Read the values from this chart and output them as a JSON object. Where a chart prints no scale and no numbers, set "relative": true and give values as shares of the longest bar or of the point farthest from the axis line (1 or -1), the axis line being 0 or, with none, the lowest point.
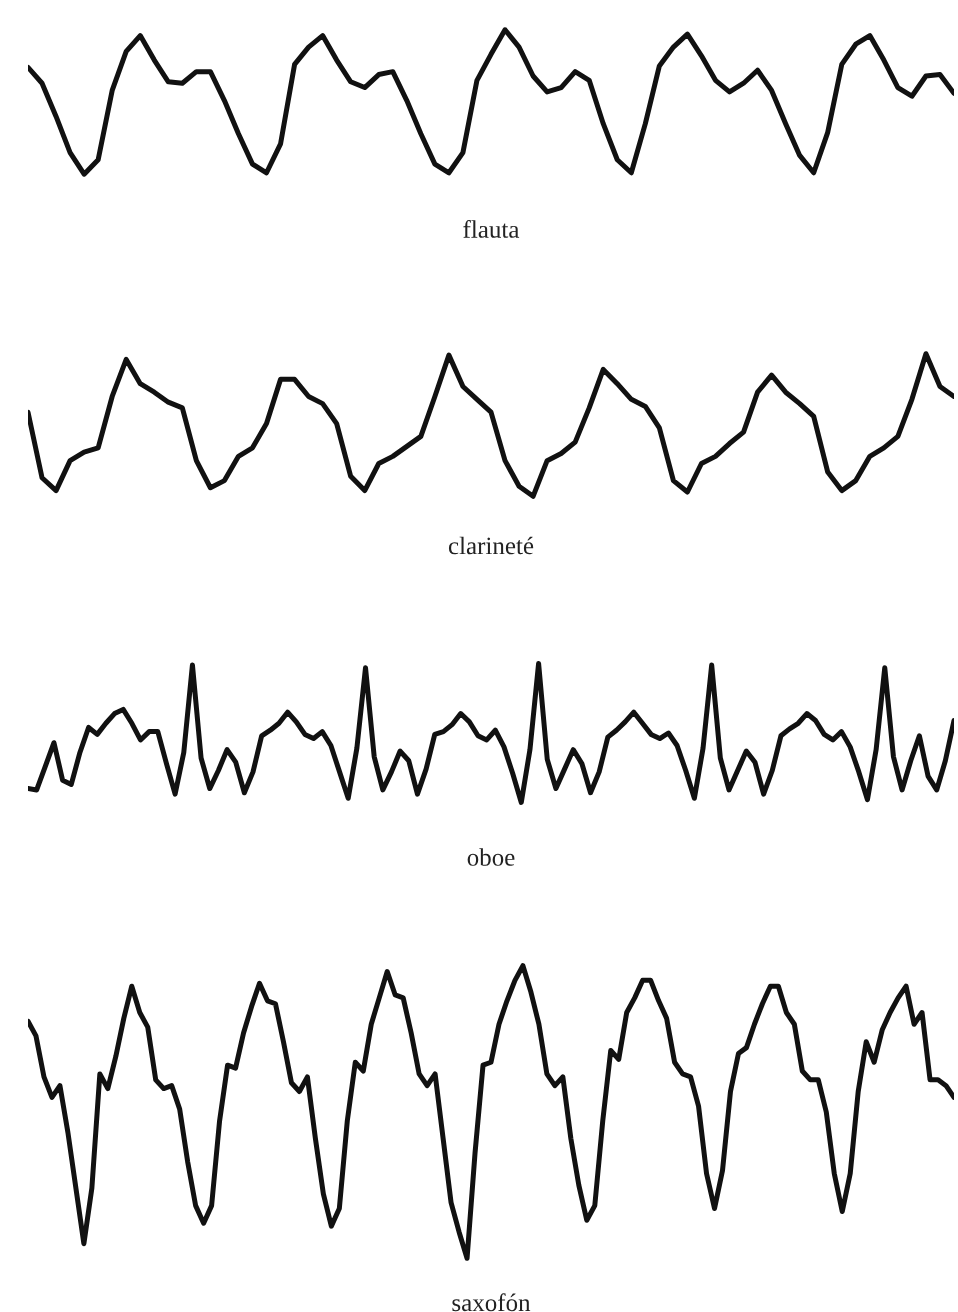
{
  "chart_data": [
    {
      "type": "line",
      "xlabel": "flauta",
      "relative": true,
      "categories": [
        null,
        null,
        null,
        null,
        null,
        null,
        null,
        null,
        null,
        null,
        null,
        null,
        null,
        null,
        null,
        null,
        null,
        null,
        null,
        null,
        null,
        null,
        null,
        null,
        null,
        null,
        null,
        null,
        null,
        null,
        null,
        null,
        null,
        null,
        null,
        null,
        null,
        null,
        null,
        null,
        null,
        null,
        null,
        null,
        null,
        null,
        null,
        null,
        null,
        null,
        null,
        null,
        null,
        null,
        null,
        null,
        null,
        null,
        null,
        null,
        null,
        null,
        null,
        null,
        null,
        null,
        null
      ],
      "series": [
        {
          "color": "#111111",
          "values": [
            0.74,
            0.63,
            0.4,
            0.15,
            0,
            0.1,
            0.58,
            0.85,
            0.96,
            0.79,
            0.64,
            0.63,
            0.71,
            0.71,
            0.51,
            0.28,
            0.07,
            0.01,
            0.21,
            0.76,
            0.88,
            0.96,
            0.79,
            0.64,
            0.6,
            0.69,
            0.71,
            0.51,
            0.28,
            0.07,
            0.01,
            0.15,
            0.65,
            0.83,
            1,
            0.88,
            0.68,
            0.57,
            0.6,
            0.71,
            0.65,
            0.35,
            0.1,
            0.01,
            0.35,
            0.75,
            0.88,
            0.97,
            0.82,
            0.65,
            0.57,
            0.63,
            0.72,
            0.58,
            0.35,
            0.13,
            0.01,
            0.29,
            0.76,
            0.9,
            0.96,
            0.79,
            0.6,
            0.54,
            0.68,
            0.69,
            0.56
          ]
        }
      ]
    },
    {
      "type": "line",
      "xlabel": "clarineté",
      "relative": true,
      "categories": [
        null,
        null,
        null,
        null,
        null,
        null,
        null,
        null,
        null,
        null,
        null,
        null,
        null,
        null,
        null,
        null,
        null,
        null,
        null,
        null,
        null,
        null,
        null,
        null,
        null,
        null,
        null,
        null,
        null,
        null,
        null,
        null,
        null,
        null,
        null,
        null,
        null,
        null,
        null,
        null,
        null,
        null,
        null,
        null,
        null,
        null,
        null,
        null,
        null,
        null,
        null,
        null,
        null,
        null,
        null,
        null,
        null,
        null,
        null,
        null,
        null,
        null,
        null,
        null,
        null,
        null,
        null
      ],
      "series": [
        {
          "color": "#111111",
          "values": [
            0.59,
            0.13,
            0.04,
            0.25,
            0.31,
            0.34,
            0.7,
            0.96,
            0.79,
            0.73,
            0.66,
            0.62,
            0.25,
            0.06,
            0.11,
            0.28,
            0.34,
            0.51,
            0.82,
            0.82,
            0.7,
            0.65,
            0.51,
            0.14,
            0.04,
            0.23,
            0.28,
            0.35,
            0.42,
            0.7,
            0.99,
            0.77,
            0.68,
            0.59,
            0.25,
            0.07,
            0,
            0.25,
            0.3,
            0.38,
            0.62,
            0.89,
            0.79,
            0.68,
            0.63,
            0.48,
            0.11,
            0.03,
            0.23,
            0.28,
            0.37,
            0.45,
            0.73,
            0.85,
            0.73,
            0.65,
            0.56,
            0.17,
            0.04,
            0.11,
            0.28,
            0.34,
            0.42,
            0.68,
            1,
            0.77,
            0.7
          ]
        }
      ]
    },
    {
      "type": "line",
      "xlabel": "oboe",
      "relative": true,
      "categories": [
        null,
        null,
        null,
        null,
        null,
        null,
        null,
        null,
        null,
        null,
        null,
        null,
        null,
        null,
        null,
        null,
        null,
        null,
        null,
        null,
        null,
        null,
        null,
        null,
        null,
        null,
        null,
        null,
        null,
        null,
        null,
        null,
        null,
        null,
        null,
        null,
        null,
        null,
        null,
        null,
        null,
        null,
        null,
        null,
        null,
        null,
        null,
        null,
        null,
        null,
        null,
        null,
        null,
        null,
        null,
        null,
        null,
        null,
        null,
        null,
        null,
        null,
        null,
        null,
        null,
        null,
        null,
        null,
        null,
        null,
        null,
        null,
        null,
        null,
        null,
        null,
        null,
        null,
        null,
        null,
        null,
        null,
        null,
        null,
        null,
        null,
        null,
        null,
        null,
        null,
        null,
        null,
        null,
        null,
        null,
        null,
        null,
        null,
        null,
        null,
        null,
        null,
        null,
        null,
        null,
        null,
        null,
        null
      ],
      "series": [
        {
          "color": "#111111",
          "values": [
            0.1,
            0.09,
            0.26,
            0.43,
            0.16,
            0.13,
            0.36,
            0.54,
            0.49,
            0.57,
            0.64,
            0.67,
            0.57,
            0.45,
            0.51,
            0.51,
            0.28,
            0.06,
            0.36,
            0.99,
            0.32,
            0.1,
            0.23,
            0.38,
            0.29,
            0.07,
            0.22,
            0.48,
            0.52,
            0.57,
            0.65,
            0.58,
            0.49,
            0.46,
            0.51,
            0.41,
            0.22,
            0.03,
            0.39,
            0.97,
            0.33,
            0.09,
            0.22,
            0.37,
            0.3,
            0.06,
            0.24,
            0.49,
            0.51,
            0.56,
            0.64,
            0.58,
            0.48,
            0.45,
            0.52,
            0.4,
            0.21,
            0,
            0.38,
            1,
            0.31,
            0.1,
            0.24,
            0.38,
            0.28,
            0.07,
            0.22,
            0.47,
            0.52,
            0.58,
            0.65,
            0.57,
            0.49,
            0.46,
            0.5,
            0.41,
            0.23,
            0.03,
            0.39,
            0.99,
            0.32,
            0.09,
            0.23,
            0.37,
            0.29,
            0.06,
            0.23,
            0.48,
            0.53,
            0.57,
            0.64,
            0.59,
            0.49,
            0.45,
            0.51,
            0.4,
            0.22,
            0.02,
            0.38,
            0.97,
            0.33,
            0.09,
            0.3,
            0.48,
            0.19,
            0.09,
            0.3,
            0.59
          ]
        }
      ]
    },
    {
      "type": "line",
      "xlabel": "saxofón",
      "relative": true,
      "categories": [
        null,
        null,
        null,
        null,
        null,
        null,
        null,
        null,
        null,
        null,
        null,
        null,
        null,
        null,
        null,
        null,
        null,
        null,
        null,
        null,
        null,
        null,
        null,
        null,
        null,
        null,
        null,
        null,
        null,
        null,
        null,
        null,
        null,
        null,
        null,
        null,
        null,
        null,
        null,
        null,
        null,
        null,
        null,
        null,
        null,
        null,
        null,
        null,
        null,
        null,
        null,
        null,
        null,
        null,
        null,
        null,
        null,
        null,
        null,
        null,
        null,
        null,
        null,
        null,
        null,
        null,
        null,
        null,
        null,
        null,
        null,
        null,
        null,
        null,
        null,
        null,
        null,
        null,
        null,
        null,
        null,
        null,
        null,
        null,
        null,
        null,
        null,
        null,
        null,
        null,
        null,
        null,
        null,
        null,
        null,
        null,
        null,
        null,
        null,
        null,
        null,
        null,
        null,
        null,
        null,
        null,
        null,
        null,
        null,
        null,
        null,
        null,
        null,
        null,
        null,
        null,
        null
      ],
      "series": [
        {
          "color": "#111111",
          "values": [
            0.81,
            0.76,
            0.62,
            0.55,
            0.59,
            0.43,
            0.24,
            0.05,
            0.24,
            0.63,
            0.58,
            0.69,
            0.82,
            0.93,
            0.84,
            0.79,
            0.61,
            0.58,
            0.59,
            0.51,
            0.33,
            0.18,
            0.12,
            0.18,
            0.47,
            0.66,
            0.65,
            0.77,
            0.86,
            0.94,
            0.88,
            0.87,
            0.74,
            0.6,
            0.57,
            0.62,
            0.41,
            0.22,
            0.11,
            0.17,
            0.47,
            0.67,
            0.64,
            0.8,
            0.89,
            0.98,
            0.9,
            0.89,
            0.77,
            0.63,
            0.59,
            0.63,
            0.41,
            0.19,
            0.09,
            0,
            0.36,
            0.66,
            0.67,
            0.8,
            0.88,
            0.95,
            1,
            0.91,
            0.8,
            0.63,
            0.59,
            0.62,
            0.41,
            0.25,
            0.13,
            0.18,
            0.47,
            0.71,
            0.68,
            0.84,
            0.89,
            0.95,
            0.95,
            0.88,
            0.82,
            0.67,
            0.63,
            0.62,
            0.52,
            0.29,
            0.17,
            0.3,
            0.57,
            0.7,
            0.72,
            0.8,
            0.87,
            0.93,
            0.93,
            0.84,
            0.8,
            0.64,
            0.61,
            0.61,
            0.5,
            0.29,
            0.16,
            0.29,
            0.57,
            0.74,
            0.67,
            0.78,
            0.84,
            0.89,
            0.93,
            0.8,
            0.84,
            0.61,
            0.61,
            0.59,
            0.55
          ]
        }
      ]
    }
  ]
}
